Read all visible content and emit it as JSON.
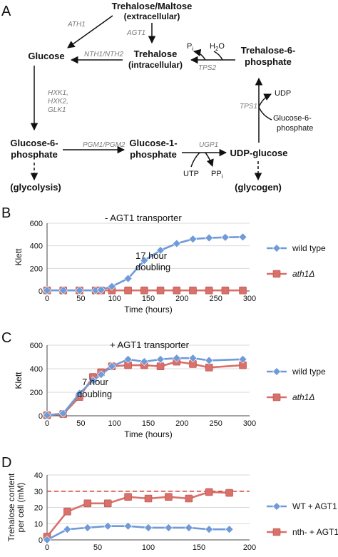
{
  "figure": {
    "panel_labels": [
      "A",
      "B",
      "C",
      "D"
    ]
  },
  "pathway": {
    "nodes": {
      "trehalose_ext": [
        "Trehalose/Maltose",
        "(extracellular)"
      ],
      "glucose": [
        "Glucose"
      ],
      "trehalose_int": [
        "Trehalose",
        "(intracellular)"
      ],
      "t6p": [
        "Trehalose-6-",
        "phosphate"
      ],
      "g6p": [
        "Glucose-6-",
        "phosphate"
      ],
      "g1p": [
        "Glucose-1-",
        "phosphate"
      ],
      "udpg": [
        "UDP-glucose"
      ],
      "glycolysis": [
        "(glycolysis)"
      ],
      "glycogen": [
        "(glycogen)"
      ]
    },
    "enzymes": {
      "ath1": "ATH1",
      "agt1": "AGT1",
      "nth": "NTH1/NTH2",
      "tps2": "TPS2",
      "hxk": [
        "HXK1,",
        "HXK2,",
        "GLK1"
      ],
      "pgm": "PGM1/PGM2",
      "ugp1": "UGP1",
      "tps1": "TPS1"
    },
    "cofactors": {
      "pi": "P",
      "pi_sub": "i",
      "h2o": "H",
      "h2o_sub": "2",
      "h2o_end": "O",
      "udp": "UDP",
      "g6p_side": [
        "Glucose-6-",
        "phosphate"
      ],
      "utp": "UTP",
      "ppi": "PP",
      "ppi_sub": "i"
    }
  },
  "colors": {
    "wild_type": "#6f9bd8",
    "mutant": "#d9706a",
    "threshold": "#d0352b",
    "axis": "#444444",
    "grid": "#d9d9d9"
  },
  "chart_data": [
    {
      "type": "line",
      "panel": "B",
      "annotation_title": "- AGT1 transporter",
      "annotation_doubling": [
        "17 hour",
        "doubling"
      ],
      "xlabel": "Time (hours)",
      "ylabel": "Klett",
      "xlim": [
        0,
        300
      ],
      "ylim": [
        0,
        600
      ],
      "xticks": [
        "0",
        "50",
        "100",
        "150",
        "200",
        "250",
        "300"
      ],
      "yticks": [
        "0",
        "200",
        "400",
        "600"
      ],
      "grid": true,
      "legend_position": "right",
      "series": [
        {
          "name": "wild type",
          "marker": "diamond",
          "x": [
            0,
            24,
            48,
            72,
            80,
            96,
            120,
            144,
            168,
            192,
            216,
            240,
            264,
            290
          ],
          "y": [
            5,
            5,
            5,
            5,
            10,
            40,
            110,
            270,
            360,
            420,
            460,
            470,
            475,
            478
          ]
        },
        {
          "name": "ath1Δ",
          "marker": "square",
          "x": [
            0,
            24,
            48,
            72,
            80,
            96,
            120,
            144,
            168,
            192,
            216,
            240,
            264,
            290
          ],
          "y": [
            5,
            5,
            5,
            5,
            5,
            5,
            5,
            5,
            5,
            5,
            5,
            5,
            5,
            5
          ]
        }
      ]
    },
    {
      "type": "line",
      "panel": "C",
      "annotation_title": "+ AGT1 transporter",
      "annotation_doubling": [
        "7 hour",
        "doubling"
      ],
      "xlabel": "Time (hours)",
      "ylabel": "Klett",
      "xlim": [
        0,
        300
      ],
      "ylim": [
        0,
        600
      ],
      "xticks": [
        "0",
        "50",
        "100",
        "150",
        "200",
        "250",
        "300"
      ],
      "yticks": [
        "0",
        "200",
        "400",
        "600"
      ],
      "grid": true,
      "legend_position": "right",
      "series": [
        {
          "name": "wild type",
          "marker": "diamond",
          "x": [
            0,
            24,
            48,
            68,
            80,
            96,
            120,
            144,
            168,
            192,
            216,
            240,
            290
          ],
          "y": [
            5,
            20,
            190,
            300,
            350,
            420,
            480,
            460,
            480,
            490,
            490,
            470,
            480
          ]
        },
        {
          "name": "ath1Δ",
          "marker": "square",
          "x": [
            0,
            24,
            48,
            68,
            80,
            96,
            120,
            144,
            168,
            192,
            216,
            240,
            290
          ],
          "y": [
            5,
            15,
            160,
            330,
            370,
            420,
            430,
            430,
            420,
            460,
            440,
            410,
            430
          ]
        }
      ]
    },
    {
      "type": "line",
      "panel": "D",
      "xlabel": "",
      "ylabel": [
        "Trehalose content",
        "per cell (mM)"
      ],
      "xlim": [
        0,
        200
      ],
      "ylim": [
        0,
        40
      ],
      "xticks": [
        "0",
        "50",
        "100",
        "150",
        "200"
      ],
      "yticks": [
        "0",
        "10",
        "20",
        "30",
        "40"
      ],
      "grid": true,
      "legend_position": "right",
      "reference_line": 30,
      "series": [
        {
          "name": "WT + AGT1",
          "marker": "diamond",
          "x": [
            0,
            20,
            40,
            60,
            80,
            100,
            120,
            140,
            160,
            180
          ],
          "y": [
            0,
            6.5,
            7.5,
            8.5,
            8.5,
            7.5,
            7.5,
            7.5,
            6.5,
            6.5
          ]
        },
        {
          "name": "nth- + AGT1",
          "marker": "square",
          "x": [
            0,
            20,
            40,
            60,
            80,
            100,
            120,
            140,
            160,
            180
          ],
          "y": [
            2,
            17.5,
            22.5,
            22.5,
            26.5,
            25.5,
            26.5,
            25.5,
            29.5,
            29
          ]
        }
      ]
    }
  ]
}
